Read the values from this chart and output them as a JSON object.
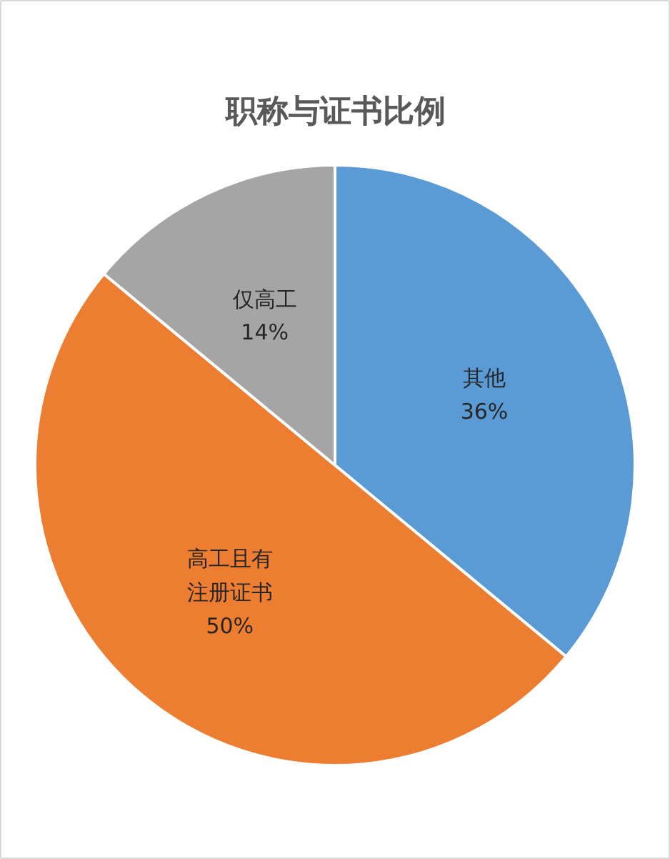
{
  "chart_data": {
    "type": "pie",
    "title": "职称与证书比例",
    "categories": [
      "其他",
      "高工且有注册证书",
      "仅高工"
    ],
    "values": [
      36,
      50,
      14
    ],
    "value_labels": [
      "36%",
      "50%",
      "14%"
    ],
    "colors": [
      "#5b9bd5",
      "#ed7d31",
      "#a5a5a5"
    ]
  }
}
